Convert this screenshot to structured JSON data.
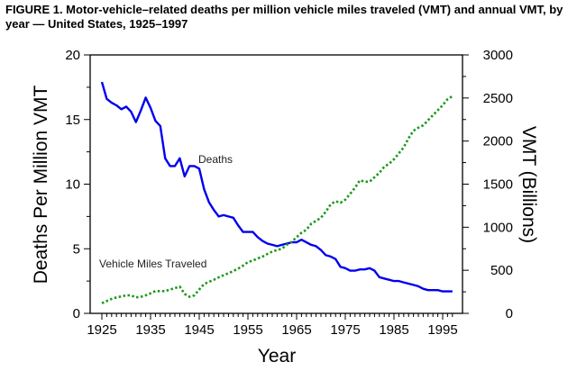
{
  "chart_data": {
    "type": "line",
    "title": "FIGURE 1. Motor-vehicle–related deaths per million vehicle miles traveled (VMT) and annual VMT, by year — United States, 1925–1997",
    "xlabel": "Year",
    "ylabel": "Deaths Per Million VMT",
    "y2label": "VMT (Billions)",
    "xlim": [
      1925,
      1997
    ],
    "ylim": [
      0,
      20
    ],
    "y2lim": [
      0,
      3000
    ],
    "xticks": [
      "1925",
      "1935",
      "1945",
      "1955",
      "1965",
      "1975",
      "1985",
      "1995"
    ],
    "yticks": [
      "0",
      "5",
      "10",
      "15",
      "20"
    ],
    "y2ticks": [
      "0",
      "500",
      "1000",
      "1500",
      "2000",
      "2500",
      "3000"
    ],
    "grid": false,
    "x": [
      1925,
      1926,
      1927,
      1928,
      1929,
      1930,
      1931,
      1932,
      1933,
      1934,
      1935,
      1936,
      1937,
      1938,
      1939,
      1940,
      1941,
      1942,
      1943,
      1944,
      1945,
      1946,
      1947,
      1948,
      1949,
      1950,
      1951,
      1952,
      1953,
      1954,
      1955,
      1956,
      1957,
      1958,
      1959,
      1960,
      1961,
      1962,
      1963,
      1964,
      1965,
      1966,
      1967,
      1968,
      1969,
      1970,
      1971,
      1972,
      1973,
      1974,
      1975,
      1976,
      1977,
      1978,
      1979,
      1980,
      1981,
      1982,
      1983,
      1984,
      1985,
      1986,
      1987,
      1988,
      1989,
      1990,
      1991,
      1992,
      1993,
      1994,
      1995,
      1996,
      1997
    ],
    "series": [
      {
        "name": "Deaths",
        "axis": "left",
        "color": "#0000ee",
        "style": "solid",
        "values": [
          17.9,
          16.6,
          16.3,
          16.1,
          15.8,
          16.0,
          15.6,
          14.8,
          15.7,
          16.7,
          15.9,
          14.9,
          14.5,
          12.0,
          11.4,
          11.4,
          12.0,
          10.6,
          11.4,
          11.4,
          11.2,
          9.6,
          8.6,
          8.0,
          7.5,
          7.6,
          7.5,
          7.4,
          6.8,
          6.3,
          6.3,
          6.3,
          5.9,
          5.6,
          5.4,
          5.3,
          5.2,
          5.3,
          5.4,
          5.5,
          5.5,
          5.7,
          5.5,
          5.3,
          5.2,
          4.9,
          4.5,
          4.4,
          4.2,
          3.6,
          3.5,
          3.3,
          3.3,
          3.4,
          3.4,
          3.5,
          3.3,
          2.8,
          2.7,
          2.6,
          2.5,
          2.5,
          2.4,
          2.3,
          2.2,
          2.1,
          1.9,
          1.8,
          1.8,
          1.8,
          1.7,
          1.7,
          1.7
        ]
      },
      {
        "name": "Vehicle Miles Traveled",
        "axis": "right",
        "color": "#1a9a1a",
        "style": "dotted",
        "values": [
          118,
          143,
          168,
          185,
          197,
          209,
          209,
          185,
          192,
          209,
          233,
          258,
          258,
          258,
          277,
          293,
          310,
          226,
          192,
          209,
          277,
          341,
          366,
          390,
          418,
          442,
          466,
          491,
          519,
          554,
          596,
          613,
          638,
          659,
          690,
          718,
          735,
          752,
          796,
          831,
          883,
          936,
          970,
          1040,
          1075,
          1110,
          1180,
          1266,
          1301,
          1284,
          1319,
          1388,
          1458,
          1545,
          1528,
          1528,
          1580,
          1632,
          1702,
          1737,
          1789,
          1859,
          1928,
          2033,
          2120,
          2155,
          2183,
          2242,
          2301,
          2357,
          2416,
          2486,
          2521
        ]
      }
    ]
  }
}
